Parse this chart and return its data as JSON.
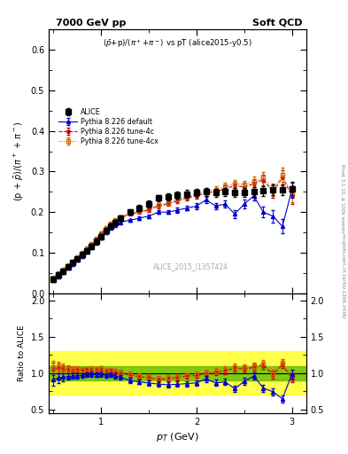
{
  "title_left": "7000 GeV pp",
  "title_right": "Soft QCD",
  "plot_title": "($\\bar{p}$+p)/($\\pi^+$+$\\pi^-$) vs pT (alice2015-y0.5)",
  "ylabel_main": "(p + barp)/($\\pi^+$ + pi)",
  "ylabel_ratio": "Ratio to ALICE",
  "xlabel": "$p_T$ (GeV)",
  "watermark": "ALICE_2015_I1357424",
  "right_label": "mcplots.cern.ch [arXiv:1306.3436]",
  "rivet_label": "Rivet 3.1.10, ≥ 100k events",
  "ylim_main": [
    0.0,
    0.65
  ],
  "ylim_ratio": [
    0.45,
    2.1
  ],
  "xlim": [
    0.45,
    3.15
  ],
  "alice_pt": [
    0.5,
    0.55,
    0.6,
    0.65,
    0.7,
    0.75,
    0.8,
    0.85,
    0.9,
    0.95,
    1.0,
    1.05,
    1.1,
    1.15,
    1.2,
    1.3,
    1.4,
    1.5,
    1.6,
    1.7,
    1.8,
    1.9,
    2.0,
    2.1,
    2.2,
    2.3,
    2.4,
    2.5,
    2.6,
    2.7,
    2.8,
    2.9,
    3.0
  ],
  "alice_y": [
    0.035,
    0.045,
    0.055,
    0.065,
    0.075,
    0.085,
    0.095,
    0.105,
    0.115,
    0.128,
    0.14,
    0.155,
    0.165,
    0.175,
    0.185,
    0.2,
    0.21,
    0.22,
    0.235,
    0.238,
    0.242,
    0.245,
    0.248,
    0.25,
    0.248,
    0.25,
    0.248,
    0.248,
    0.25,
    0.252,
    0.255,
    0.255,
    0.258
  ],
  "alice_yerr": [
    0.003,
    0.003,
    0.003,
    0.003,
    0.003,
    0.003,
    0.003,
    0.003,
    0.004,
    0.004,
    0.005,
    0.005,
    0.005,
    0.006,
    0.006,
    0.007,
    0.007,
    0.008,
    0.008,
    0.009,
    0.009,
    0.009,
    0.009,
    0.01,
    0.01,
    0.01,
    0.011,
    0.011,
    0.012,
    0.012,
    0.013,
    0.013,
    0.015
  ],
  "pythia_default_pt": [
    0.5,
    0.55,
    0.6,
    0.65,
    0.7,
    0.75,
    0.8,
    0.85,
    0.9,
    0.95,
    1.0,
    1.05,
    1.1,
    1.15,
    1.2,
    1.3,
    1.4,
    1.5,
    1.6,
    1.7,
    1.8,
    1.9,
    2.0,
    2.1,
    2.2,
    2.3,
    2.4,
    2.5,
    2.6,
    2.7,
    2.8,
    2.9,
    3.0
  ],
  "pythia_default_y": [
    0.032,
    0.042,
    0.052,
    0.062,
    0.072,
    0.082,
    0.092,
    0.103,
    0.113,
    0.125,
    0.138,
    0.15,
    0.162,
    0.168,
    0.175,
    0.18,
    0.185,
    0.19,
    0.2,
    0.2,
    0.205,
    0.21,
    0.215,
    0.23,
    0.215,
    0.22,
    0.195,
    0.22,
    0.24,
    0.2,
    0.19,
    0.165,
    0.255
  ],
  "pythia_default_yerr": [
    0.001,
    0.001,
    0.001,
    0.001,
    0.001,
    0.001,
    0.001,
    0.002,
    0.002,
    0.002,
    0.002,
    0.002,
    0.003,
    0.003,
    0.003,
    0.003,
    0.004,
    0.004,
    0.005,
    0.005,
    0.006,
    0.006,
    0.007,
    0.008,
    0.008,
    0.009,
    0.01,
    0.01,
    0.012,
    0.013,
    0.015,
    0.018,
    0.02
  ],
  "pythia_4c_pt": [
    0.5,
    0.55,
    0.6,
    0.65,
    0.7,
    0.75,
    0.8,
    0.85,
    0.9,
    0.95,
    1.0,
    1.05,
    1.1,
    1.15,
    1.2,
    1.3,
    1.4,
    1.5,
    1.6,
    1.7,
    1.8,
    1.9,
    2.0,
    2.1,
    2.2,
    2.3,
    2.4,
    2.5,
    2.6,
    2.7,
    2.8,
    2.9,
    3.0
  ],
  "pythia_4c_y": [
    0.037,
    0.048,
    0.058,
    0.068,
    0.078,
    0.089,
    0.099,
    0.11,
    0.12,
    0.133,
    0.148,
    0.16,
    0.17,
    0.178,
    0.186,
    0.195,
    0.2,
    0.205,
    0.215,
    0.22,
    0.228,
    0.235,
    0.24,
    0.248,
    0.25,
    0.258,
    0.265,
    0.262,
    0.27,
    0.28,
    0.25,
    0.285,
    0.24
  ],
  "pythia_4c_yerr": [
    0.001,
    0.001,
    0.001,
    0.001,
    0.001,
    0.001,
    0.001,
    0.002,
    0.002,
    0.002,
    0.002,
    0.002,
    0.003,
    0.003,
    0.003,
    0.003,
    0.004,
    0.004,
    0.005,
    0.005,
    0.006,
    0.006,
    0.007,
    0.008,
    0.008,
    0.009,
    0.01,
    0.01,
    0.012,
    0.013,
    0.015,
    0.018,
    0.02
  ],
  "pythia_4cx_pt": [
    0.5,
    0.55,
    0.6,
    0.65,
    0.7,
    0.75,
    0.8,
    0.85,
    0.9,
    0.95,
    1.0,
    1.05,
    1.1,
    1.15,
    1.2,
    1.3,
    1.4,
    1.5,
    1.6,
    1.7,
    1.8,
    1.9,
    2.0,
    2.1,
    2.2,
    2.3,
    2.4,
    2.5,
    2.6,
    2.7,
    2.8,
    2.9,
    3.0
  ],
  "pythia_4cx_y": [
    0.038,
    0.049,
    0.059,
    0.069,
    0.079,
    0.09,
    0.1,
    0.111,
    0.122,
    0.135,
    0.149,
    0.161,
    0.172,
    0.18,
    0.188,
    0.198,
    0.202,
    0.208,
    0.218,
    0.222,
    0.23,
    0.238,
    0.245,
    0.252,
    0.255,
    0.263,
    0.27,
    0.268,
    0.275,
    0.285,
    0.255,
    0.292,
    0.245
  ],
  "pythia_4cx_yerr": [
    0.001,
    0.001,
    0.001,
    0.001,
    0.001,
    0.001,
    0.001,
    0.002,
    0.002,
    0.002,
    0.002,
    0.002,
    0.003,
    0.003,
    0.003,
    0.003,
    0.004,
    0.004,
    0.005,
    0.005,
    0.006,
    0.006,
    0.007,
    0.008,
    0.008,
    0.009,
    0.01,
    0.01,
    0.012,
    0.013,
    0.015,
    0.018,
    0.02
  ],
  "green_band_y1": 0.9,
  "green_band_y2": 1.1,
  "yellow_band_y1": 0.7,
  "yellow_band_y2": 1.3,
  "color_alice": "#000000",
  "color_default": "#0000CC",
  "color_4c": "#CC0000",
  "color_4cx": "#CC6600",
  "bg_color": "#ffffff"
}
